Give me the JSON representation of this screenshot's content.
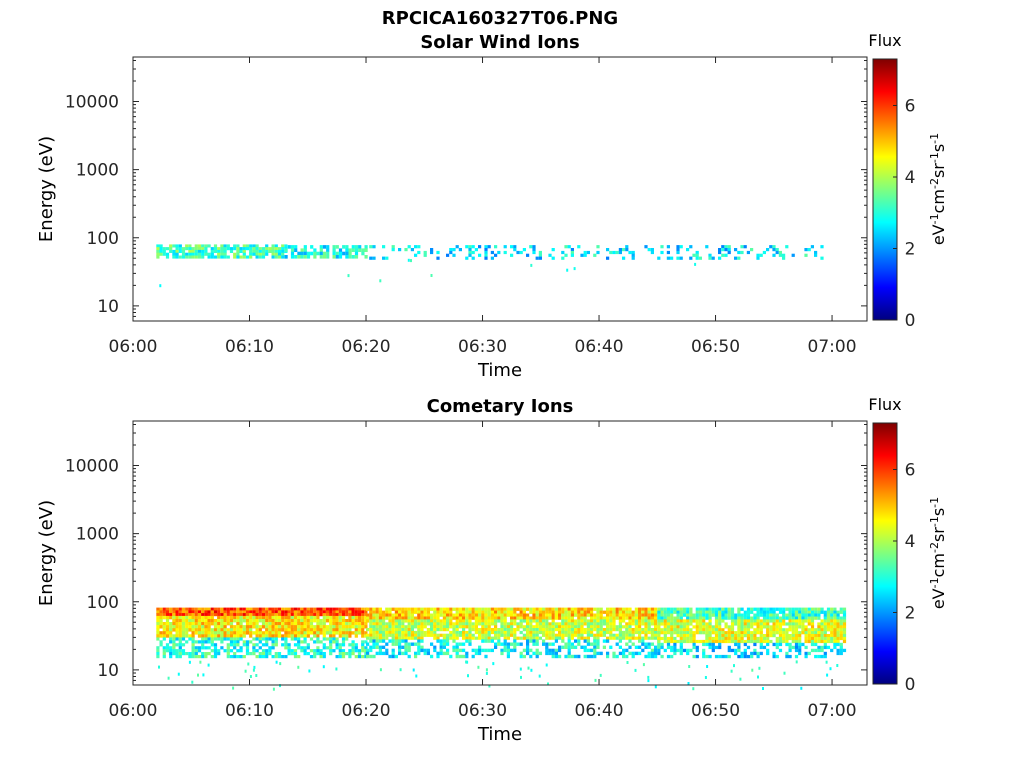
{
  "figure_title": "RPCICA160327T06.PNG",
  "colormap": [
    "#00007f",
    "#0000ff",
    "#007fff",
    "#00ffff",
    "#7fff7f",
    "#ffff00",
    "#ff7f00",
    "#ff0000",
    "#7f0000"
  ],
  "chart_data": [
    {
      "type": "heatmap",
      "title": "Solar Wind Ions",
      "xlabel": "Time",
      "ylabel": "Energy (eV)",
      "x_ticks": [
        "06:00",
        "06:10",
        "06:20",
        "06:30",
        "06:40",
        "06:50",
        "07:00"
      ],
      "y_ticks": [
        "10",
        "100",
        "1000",
        "10000"
      ],
      "y_scale": "log",
      "y_range": [
        6,
        45000
      ],
      "x_range": [
        "06:00",
        "07:03"
      ],
      "colorbar": {
        "title": "Flux",
        "label": "eV-1cm-2sr-1s-1",
        "ticks": [
          "0",
          "2",
          "4",
          "6"
        ],
        "range": [
          0,
          7.3
        ]
      },
      "data_extent": {
        "x_start": "06:02",
        "x_end": "07:00",
        "energy_band": [
          45,
          80
        ]
      },
      "bands": [
        {
          "x_start": "06:02",
          "x_end": "06:13",
          "e_low": 50,
          "e_high": 80,
          "level": 3.2,
          "coverage": 0.8
        },
        {
          "x_start": "06:13",
          "x_end": "06:20",
          "e_low": 50,
          "e_high": 78,
          "level": 2.9,
          "coverage": 0.6
        },
        {
          "x_start": "06:20",
          "x_end": "07:00",
          "e_low": 48,
          "e_high": 78,
          "level": 2.6,
          "coverage": 0.25
        }
      ]
    },
    {
      "type": "heatmap",
      "title": "Cometary Ions",
      "xlabel": "Time",
      "ylabel": "Energy (eV)",
      "x_ticks": [
        "06:00",
        "06:10",
        "06:20",
        "06:30",
        "06:40",
        "06:50",
        "07:00"
      ],
      "y_ticks": [
        "10",
        "100",
        "1000",
        "10000"
      ],
      "y_scale": "log",
      "y_range": [
        6,
        45000
      ],
      "x_range": [
        "06:00",
        "07:03"
      ],
      "colorbar": {
        "title": "Flux",
        "label": "eV-1cm-2sr-1s-1",
        "ticks": [
          "0",
          "2",
          "4",
          "6"
        ],
        "range": [
          0,
          7.3
        ]
      },
      "data_extent": {
        "x_start": "06:02",
        "x_end": "07:01",
        "energy_band": [
          12,
          82
        ]
      },
      "bands": [
        {
          "x_start": "06:02",
          "x_end": "06:20",
          "e_low": 62,
          "e_high": 82,
          "level": 5.8,
          "coverage": 1.0
        },
        {
          "x_start": "06:02",
          "x_end": "06:20",
          "e_low": 30,
          "e_high": 62,
          "level": 4.6,
          "coverage": 0.95
        },
        {
          "x_start": "06:02",
          "x_end": "06:20",
          "e_low": 15,
          "e_high": 30,
          "level": 3.0,
          "coverage": 0.6
        },
        {
          "x_start": "06:20",
          "x_end": "06:45",
          "e_low": 55,
          "e_high": 82,
          "level": 4.8,
          "coverage": 0.95
        },
        {
          "x_start": "06:20",
          "x_end": "06:45",
          "e_low": 28,
          "e_high": 55,
          "level": 4.2,
          "coverage": 0.9
        },
        {
          "x_start": "06:20",
          "x_end": "06:45",
          "e_low": 15,
          "e_high": 28,
          "level": 2.8,
          "coverage": 0.5
        },
        {
          "x_start": "06:45",
          "x_end": "07:01",
          "e_low": 55,
          "e_high": 82,
          "level": 3.2,
          "coverage": 0.9
        },
        {
          "x_start": "06:45",
          "x_end": "07:01",
          "e_low": 25,
          "e_high": 55,
          "level": 4.3,
          "coverage": 0.85
        },
        {
          "x_start": "06:45",
          "x_end": "07:01",
          "e_low": 15,
          "e_high": 25,
          "level": 2.6,
          "coverage": 0.5
        }
      ]
    }
  ]
}
